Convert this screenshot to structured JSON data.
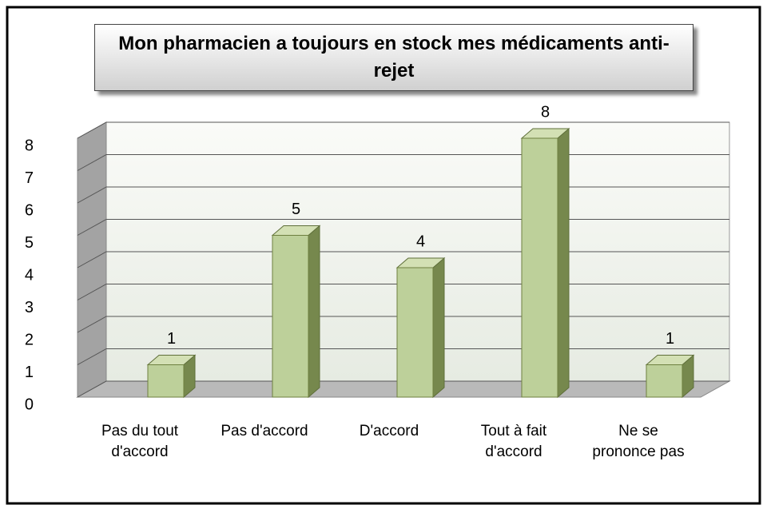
{
  "chart_data": {
    "type": "bar3d",
    "title": "Mon pharmacien a toujours en stock mes médicaments anti-rejet",
    "categories": [
      "Pas du tout d'accord",
      "Pas d'accord",
      "D'accord",
      "Tout à fait d'accord",
      "Ne se prononce pas"
    ],
    "values": [
      1,
      5,
      4,
      8,
      1
    ],
    "color": "#bdd09a",
    "ylim": [
      0,
      8
    ],
    "yticks": [
      0,
      1,
      2,
      3,
      4,
      5,
      6,
      7,
      8
    ],
    "grid": true
  }
}
